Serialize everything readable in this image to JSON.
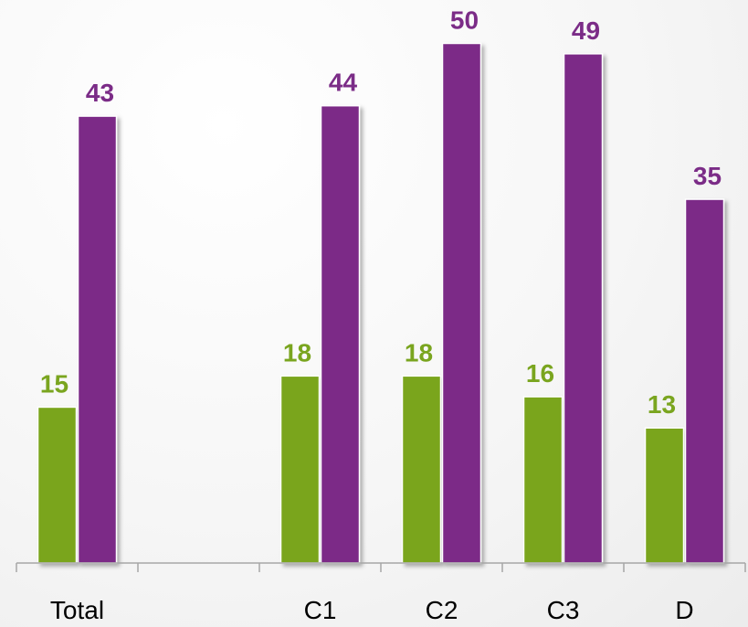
{
  "chart_data": {
    "type": "bar",
    "categories": [
      "Total",
      "",
      "C1",
      "C2",
      "C3",
      "D"
    ],
    "series": [
      {
        "values": [
          15,
          null,
          18,
          18,
          16,
          13
        ],
        "color": "#7aa51f"
      },
      {
        "values": [
          43,
          null,
          44,
          50,
          49,
          35
        ],
        "color": "#7b2c87"
      }
    ],
    "ylim": [
      0,
      54
    ],
    "grid": false,
    "axis_color": "#a6a6a6",
    "title": "",
    "xlabel": "",
    "ylabel": ""
  }
}
